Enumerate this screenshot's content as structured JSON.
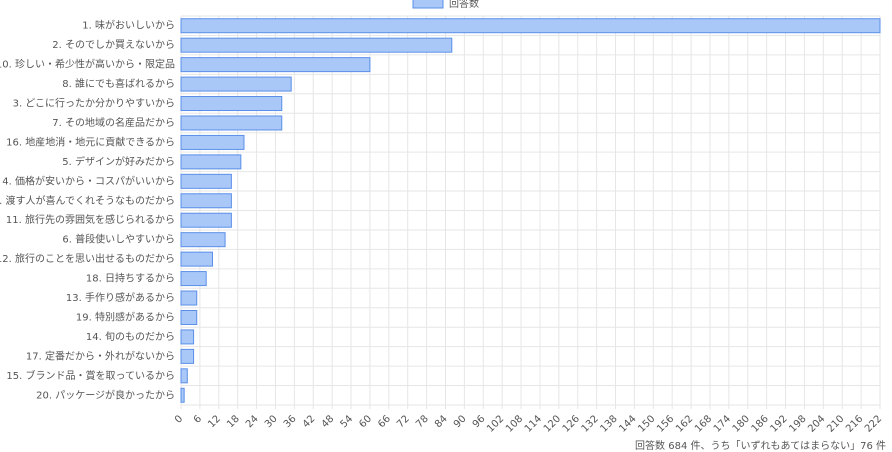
{
  "chart_data": {
    "type": "bar",
    "orientation": "horizontal",
    "categories": [
      "1. 味がおいしいから",
      "2. そのでしか買えないから",
      "10. 珍しい・希少性が高いから・限定品",
      "8. 誰にでも喜ばれるから",
      "3. どこに行ったか分かりやすいから",
      "7. その地域の名産品だから",
      "16. 地産地消・地元に貢献できるから",
      "5. デザインが好みだから",
      "4. 価格が安いから・コスパがいいから",
      "9. 渡す人が喜んでくれそうなものだから",
      "11. 旅行先の雰囲気を感じられるから",
      "6. 普段使いしやすいから",
      "12. 旅行のことを思い出せるものだから",
      "18. 日持ちするから",
      "13. 手作り感があるから",
      "19. 特別感があるから",
      "14. 旬のものだから",
      "17. 定番だから・外れがないから",
      "15. ブランド品・賞を取っているから",
      "20. パッケージが良かったから"
    ],
    "series": [
      {
        "name": "回答数",
        "color": "#a9c8f8",
        "values": [
          222,
          86,
          60,
          35,
          32,
          32,
          20,
          19,
          16,
          16,
          16,
          14,
          10,
          8,
          5,
          5,
          4,
          4,
          2,
          1
        ]
      }
    ],
    "xlim": [
      0,
      222
    ],
    "xticks": [
      0,
      6,
      12,
      18,
      24,
      30,
      36,
      42,
      48,
      54,
      60,
      66,
      72,
      78,
      84,
      90,
      96,
      102,
      108,
      114,
      120,
      126,
      132,
      138,
      144,
      150,
      156,
      162,
      168,
      174,
      180,
      186,
      192,
      198,
      204,
      210,
      216,
      222
    ],
    "grid": true,
    "legend": "top",
    "note": "回答数 684 件、うち「いずれもあてはまらない」76 件"
  }
}
